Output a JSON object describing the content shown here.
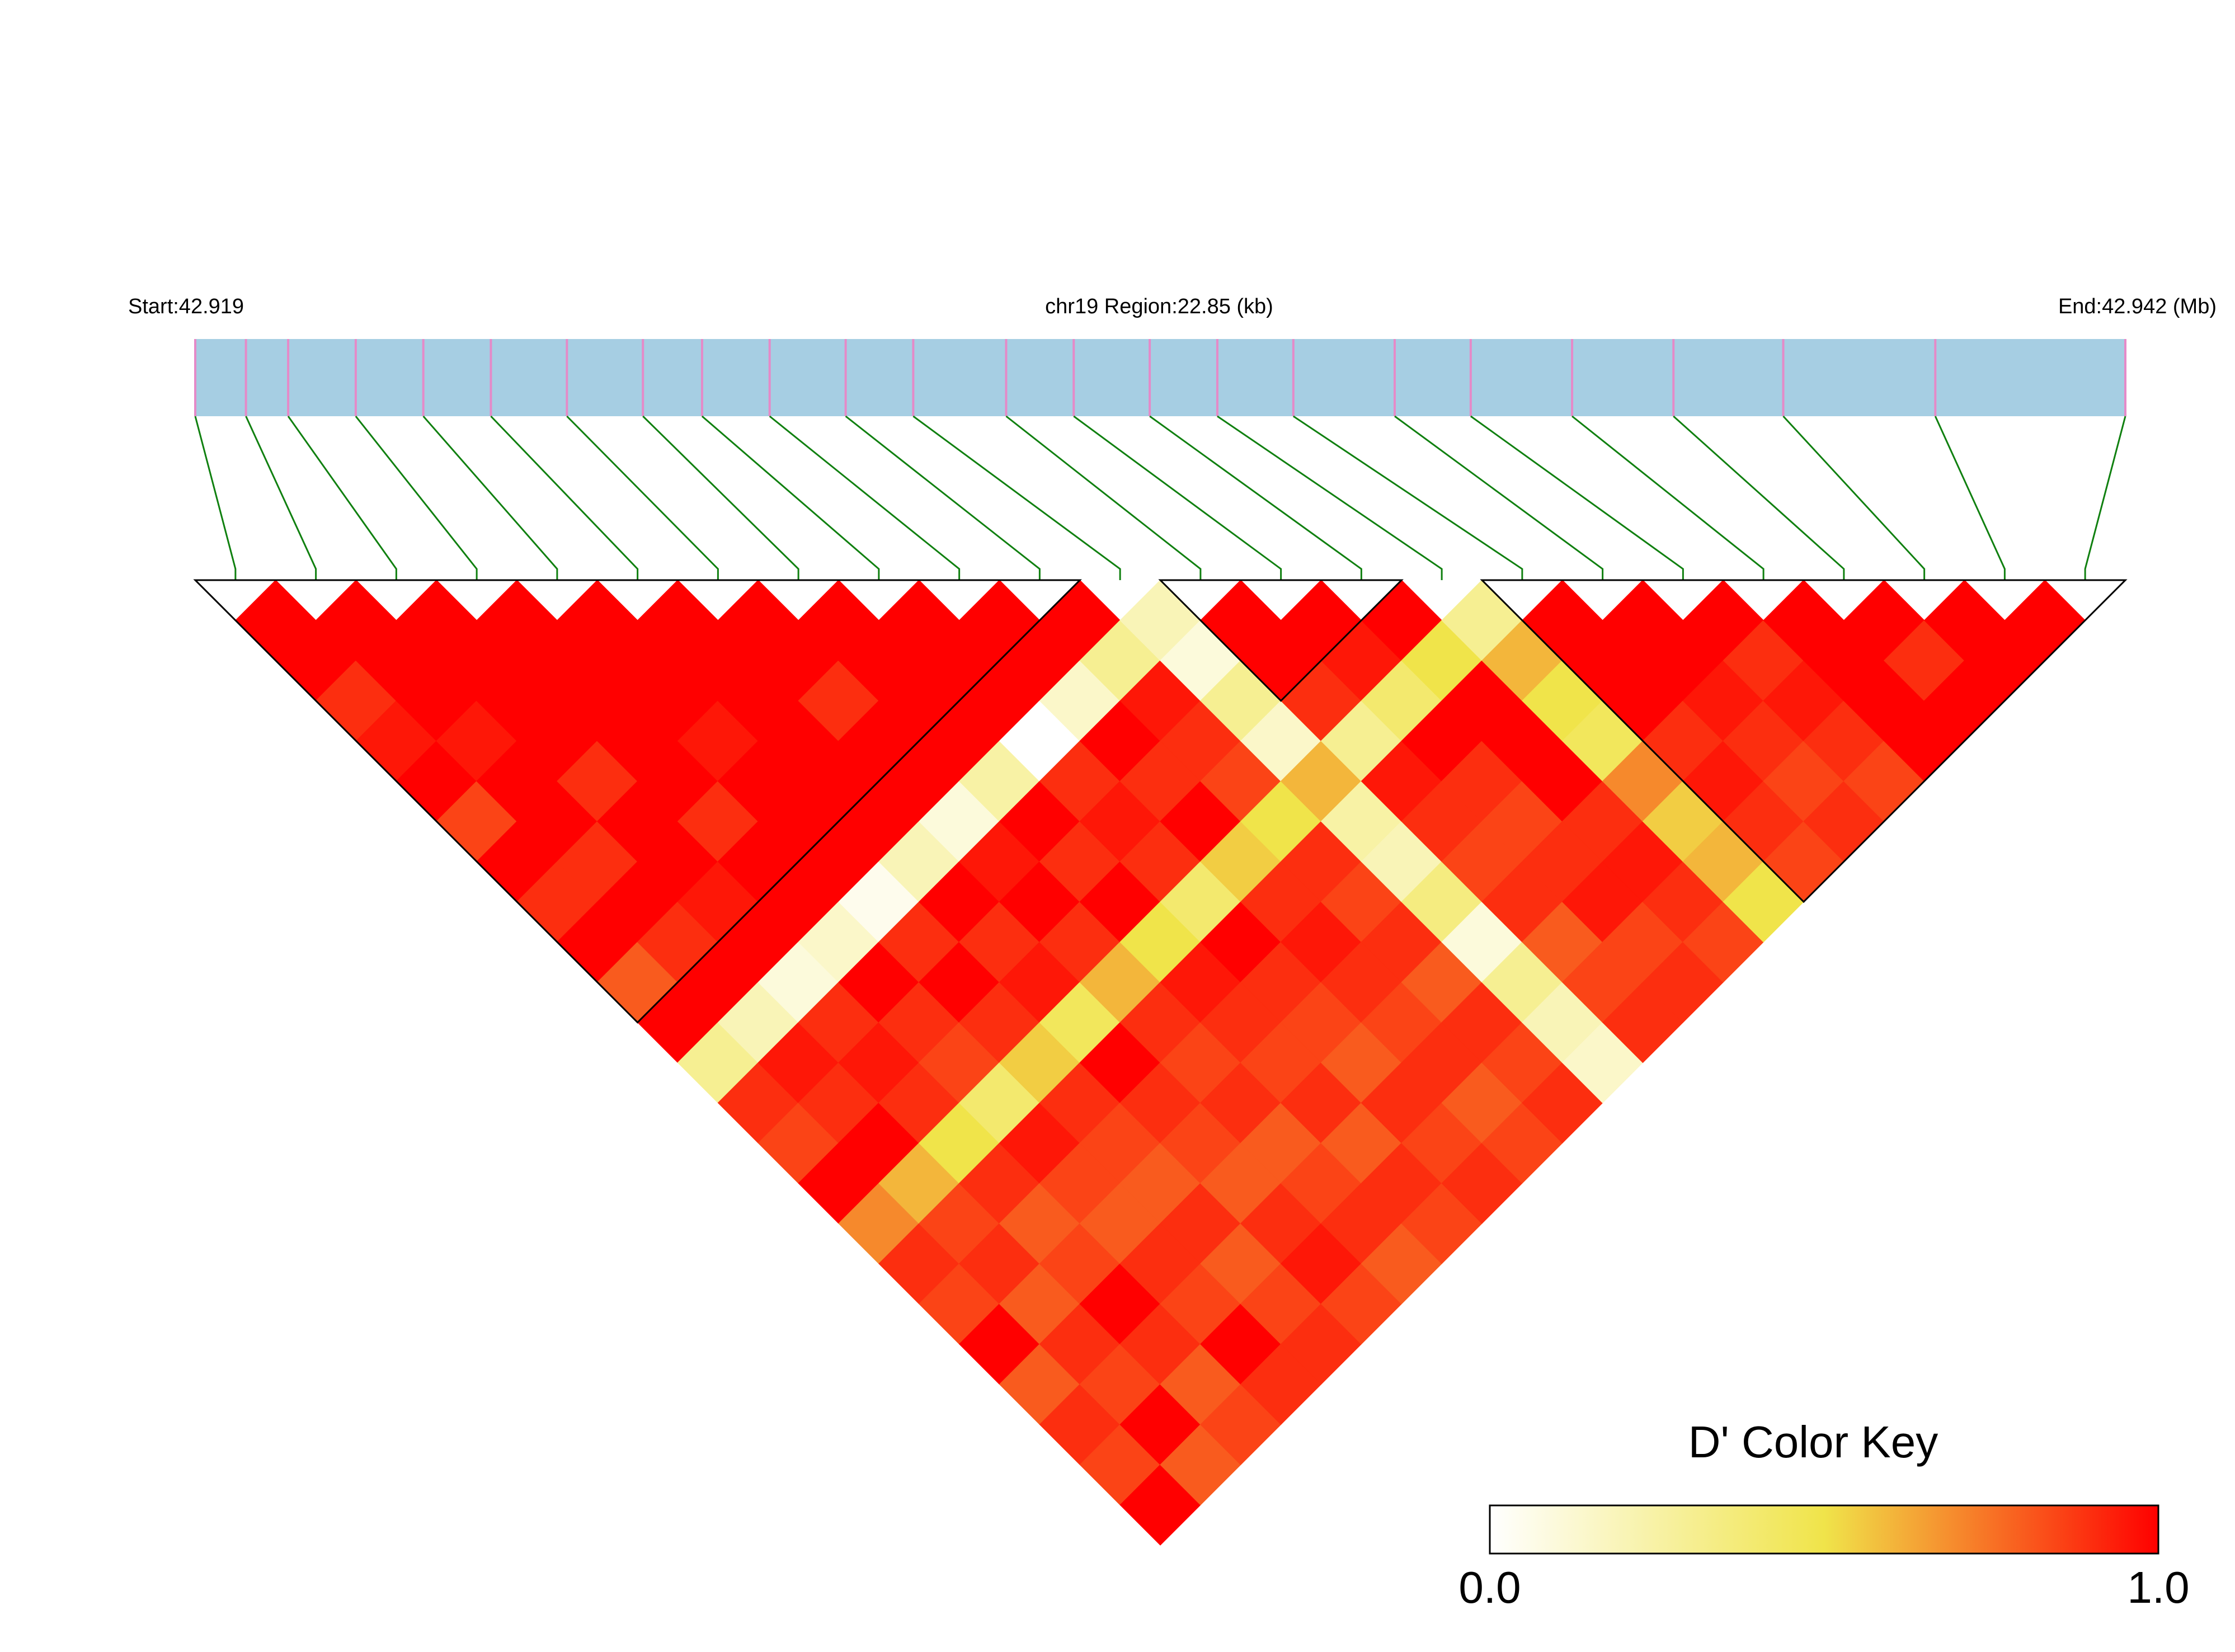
{
  "chart_data": {
    "type": "ld_heatmap",
    "start_label": "Start:42.919",
    "region_label": "chr19 Region:22.85 (kb)",
    "end_label": "End:42.942 (Mb)",
    "xlim": [
      0,
      22.85
    ],
    "snp_positions": [
      0,
      0.6,
      1.1,
      1.9,
      2.7,
      3.5,
      4.4,
      5.3,
      6.0,
      6.8,
      7.7,
      8.5,
      9.6,
      10.4,
      11.3,
      12.1,
      13.0,
      14.2,
      15.1,
      16.3,
      17.5,
      18.8,
      20.6,
      22.85
    ],
    "dprime": [
      [
        1,
        1,
        0.9,
        0.95,
        1,
        0.85,
        1,
        0.9,
        1,
        0.8,
        1,
        0.3,
        0.9,
        0.85,
        1,
        0.7,
        0.9,
        0.85,
        1,
        0.8,
        0.9,
        0.85,
        1
      ],
      [
        1,
        1,
        1,
        0.95,
        1,
        1,
        0.9,
        1,
        0.9,
        1,
        0.2,
        0.95,
        0.9,
        1,
        0.6,
        0.85,
        0.9,
        0.8,
        0.9,
        0.85,
        1,
        0.8
      ],
      [
        1,
        1,
        1,
        1,
        0.9,
        1,
        1,
        0.95,
        1,
        0.1,
        0.9,
        0.95,
        0.9,
        0.5,
        0.9,
        0.8,
        0.85,
        1,
        0.9,
        0.8,
        0.85
      ],
      [
        1,
        1,
        1,
        1,
        1,
        0.9,
        1,
        1,
        0.15,
        1,
        0.9,
        0.85,
        0.4,
        0.95,
        0.85,
        0.8,
        0.9,
        0.85,
        1,
        0.9
      ],
      [
        1,
        1,
        1,
        0.95,
        1,
        1,
        1,
        0.05,
        0.9,
        1,
        0.9,
        0.55,
        0.9,
        0.85,
        0.8,
        0.9,
        0.8,
        0.85,
        0.9
      ],
      [
        1,
        1,
        1,
        1,
        1,
        1,
        0.2,
        1,
        0.9,
        0.95,
        0.45,
        1,
        0.9,
        0.85,
        0.8,
        0.9,
        0.95,
        0.85
      ],
      [
        1,
        1,
        0.9,
        1,
        1,
        0.1,
        0.95,
        1,
        0.9,
        0.6,
        0.9,
        0.85,
        0.9,
        0.8,
        0.85,
        0.9,
        0.8
      ],
      [
        1,
        1,
        1,
        1,
        0.25,
        1,
        0.9,
        1,
        0.5,
        0.95,
        0.9,
        0.85,
        0.9,
        0.8,
        0.9,
        0.85
      ],
      [
        1,
        1,
        1,
        0,
        0.9,
        0.95,
        0.9,
        0.4,
        1,
        0.9,
        0.85,
        0.8,
        0.9,
        0.85,
        0.9
      ],
      [
        1,
        1,
        0.15,
        1,
        0.9,
        1,
        0.55,
        0.9,
        0.95,
        0.9,
        0.85,
        0.9,
        0.8,
        0.85
      ],
      [
        1,
        0.3,
        0.95,
        0.9,
        0.85,
        0.5,
        0.9,
        0.85,
        0.9,
        0.8,
        0.9,
        0.85,
        0.9
      ],
      [
        0.2,
        0.1,
        0.3,
        0.15,
        0.6,
        0.25,
        0.2,
        0.35,
        0.1,
        0.3,
        0.2,
        0.15
      ],
      [
        1,
        1,
        0.9,
        0.3,
        0.95,
        0.9,
        0.85,
        0.9,
        0.8,
        0.85,
        0.9
      ],
      [
        1,
        0.95,
        0.4,
        1,
        0.9,
        0.85,
        0.9,
        0.95,
        0.85,
        0.9
      ],
      [
        1,
        0.5,
        1,
        1,
        1,
        0.9,
        0.95,
        0.9,
        0.85
      ],
      [
        0.3,
        0.6,
        0.5,
        0.45,
        0.7,
        0.55,
        0.6,
        0.5
      ],
      [
        1,
        1,
        1,
        0.9,
        0.95,
        0.9,
        0.85
      ],
      [
        1,
        1,
        0.95,
        0.9,
        0.85,
        0.9
      ],
      [
        1,
        0.9,
        0.95,
        0.9,
        0.85
      ],
      [
        1,
        1,
        1,
        1
      ],
      [
        1,
        0.9,
        1
      ],
      [
        1,
        1
      ],
      [
        1
      ]
    ],
    "blocks": [
      [
        0,
        10
      ],
      [
        12,
        14
      ],
      [
        16,
        23
      ]
    ],
    "track_color": "#a6cee3",
    "snp_color": "#e58ac8",
    "connector_color": "#108010",
    "block_color": "#000000",
    "color_key": {
      "title": "D' Color Key",
      "colors": [
        "#ffffff",
        "#f0e44a",
        "#ff0000"
      ],
      "ticks": [
        {
          "value": 0,
          "label": "0.0"
        },
        {
          "value": 1,
          "label": "1.0"
        }
      ]
    }
  }
}
